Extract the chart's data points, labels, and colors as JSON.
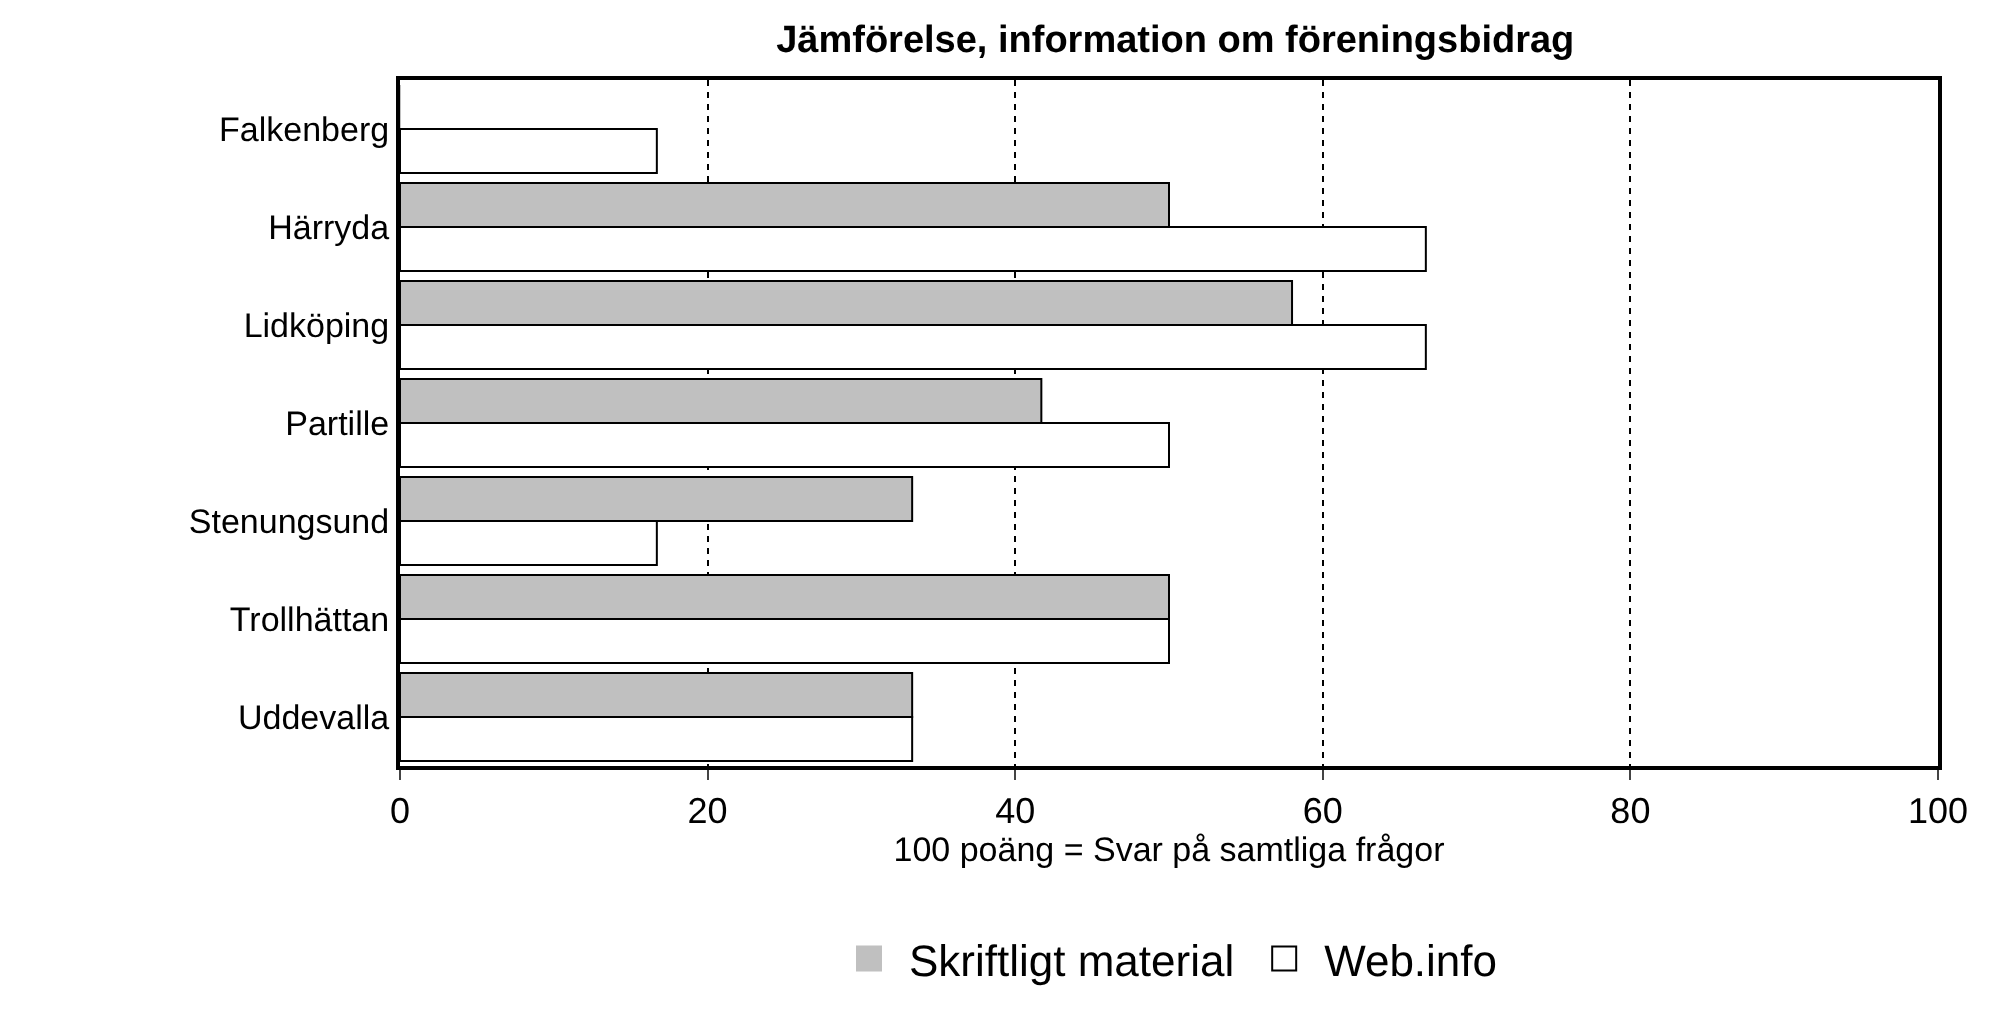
{
  "chart_data": {
    "type": "bar",
    "orientation": "horizontal",
    "title": "Jämförelse, information om föreningsbidrag",
    "xlabel": "100 poäng = Svar på samtliga frågor",
    "categories": [
      "Falkenberg",
      "Härryda",
      "Lidköping",
      "Partille",
      "Stenungsund",
      "Trollhättan",
      "Uddevalla"
    ],
    "series": [
      {
        "name": "Skriftligt material",
        "color": "#c0c0c0",
        "values": [
          0,
          50,
          58,
          41.7,
          33.3,
          50,
          33.3
        ]
      },
      {
        "name": "Web.info",
        "color": "#ffffff",
        "values": [
          16.7,
          66.7,
          66.7,
          50,
          16.7,
          50,
          33.3
        ]
      }
    ],
    "xlim": [
      0,
      100
    ],
    "xticks": [
      0,
      20,
      40,
      60,
      80,
      100
    ],
    "grid": "x",
    "legend": "bottom"
  }
}
